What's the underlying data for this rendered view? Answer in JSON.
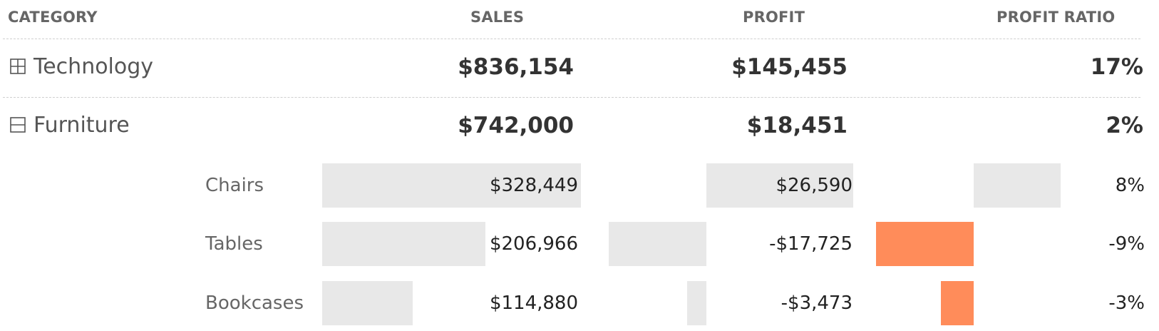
{
  "headers": {
    "category": "CATEGORY",
    "sales": "SALES",
    "profit": "PROFIT",
    "ratio": "PROFIT RATIO"
  },
  "colors": {
    "neutral_bar": "#e8e8e8",
    "negative_bar": "#ff8c5a"
  },
  "chart_data": {
    "type": "table",
    "columns": [
      "CATEGORY",
      "SALES",
      "PROFIT",
      "PROFIT RATIO"
    ],
    "categories": [
      {
        "name": "Technology",
        "expanded": false,
        "icon": "expand-plus-icon",
        "sales": "$836,154",
        "profit": "$145,455",
        "ratio": "17%"
      },
      {
        "name": "Furniture",
        "expanded": true,
        "icon": "collapse-minus-icon",
        "sales": "$742,000",
        "profit": "$18,451",
        "ratio": "2%"
      }
    ],
    "subcategories": [
      {
        "name": "Chairs",
        "parent": "Furniture",
        "sales": "$328,449",
        "profit": "$26,590",
        "ratio": "8%",
        "sales_value": 328449,
        "profit_value": 26590,
        "ratio_value": 8
      },
      {
        "name": "Tables",
        "parent": "Furniture",
        "sales": "$206,966",
        "profit": "-$17,725",
        "ratio": "-9%",
        "sales_value": 206966,
        "profit_value": -17725,
        "ratio_value": -9
      },
      {
        "name": "Bookcases",
        "parent": "Furniture",
        "sales": "$114,880",
        "profit": "-$3,473",
        "ratio": "-3%",
        "sales_value": 114880,
        "profit_value": -3473,
        "ratio_value": -3
      }
    ]
  }
}
